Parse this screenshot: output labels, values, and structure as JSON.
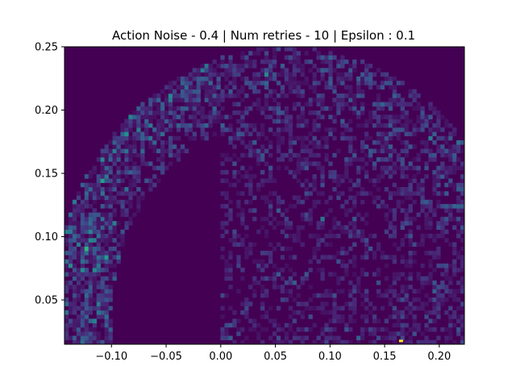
{
  "chart_data": {
    "type": "heatmap",
    "title": "Action Noise - 0.4 | Num retries - 10 | Epsilon : 0.1",
    "xlabel": "",
    "ylabel": "",
    "xlim": [
      -0.143,
      0.223
    ],
    "ylim": [
      0.015,
      0.25
    ],
    "x_ticks": [
      -0.1,
      -0.05,
      0.0,
      0.05,
      0.1,
      0.15,
      0.2
    ],
    "x_tick_labels": [
      "−0.10",
      "−0.05",
      "0.00",
      "0.05",
      "0.10",
      "0.15",
      "0.20"
    ],
    "y_ticks": [
      0.05,
      0.1,
      0.15,
      0.2,
      0.25
    ],
    "y_tick_labels": [
      "0.05",
      "0.10",
      "0.15",
      "0.20",
      "0.25"
    ],
    "colormap": "viridis",
    "grid": false,
    "bins": {
      "nx": 100,
      "ny": 70
    },
    "distribution": {
      "arc_center": [
        0.06,
        0.035
      ],
      "outer_radius": 0.215,
      "inner_radius": 0.16,
      "inner_cutoff_x": 0.0,
      "inner_arc_range_x": [
        -0.128,
        -0.09
      ],
      "inner_arc_end_y": 0.078,
      "hotspot": {
        "x": 0.165,
        "y": 0.017,
        "value": 1.0
      }
    },
    "colors": {
      "background": "#440154",
      "low": "#46327e",
      "mid": "#365c8d",
      "high": "#277f8e",
      "peak": "#fde725"
    }
  }
}
